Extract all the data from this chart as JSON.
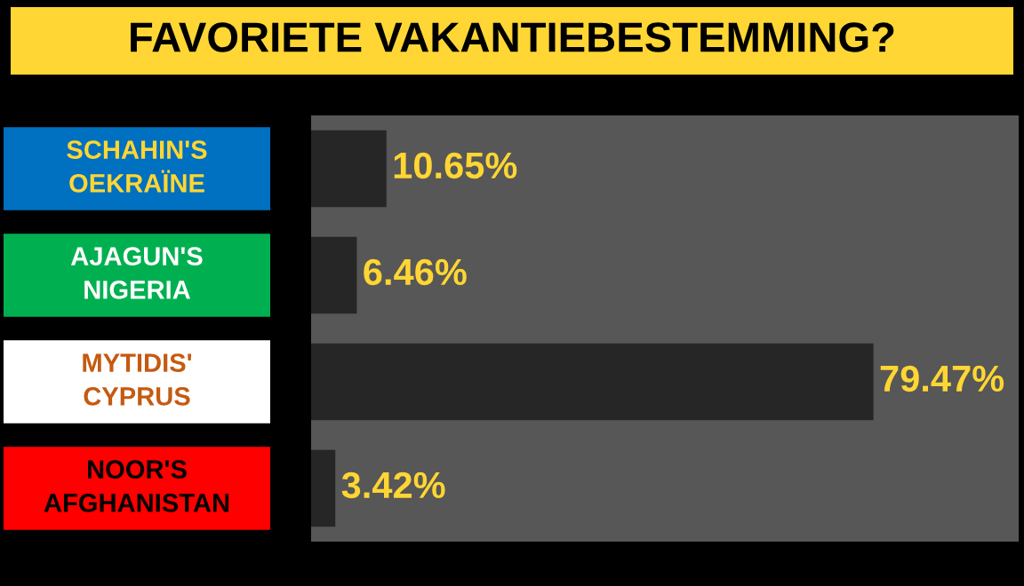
{
  "chart_data": {
    "type": "bar",
    "orientation": "horizontal",
    "title": "FAVORIETE VAKANTIEBESTEMMING?",
    "categories": [
      "SCHAHIN'S\nOEKRAÏNE",
      "AJAGUN'S\nNIGERIA",
      "MYTIDIS'\nCYPRUS",
      "NOOR'S\nAFGHANISTAN"
    ],
    "values": [
      10.65,
      6.46,
      79.47,
      3.42
    ],
    "color": "#262626",
    "value_labels": [
      "10.65%",
      "6.46%",
      "79.47%",
      "3.42%"
    ],
    "xlim": [
      0,
      100
    ],
    "tick_labels": "y",
    "grid": false,
    "legend": false
  }
}
